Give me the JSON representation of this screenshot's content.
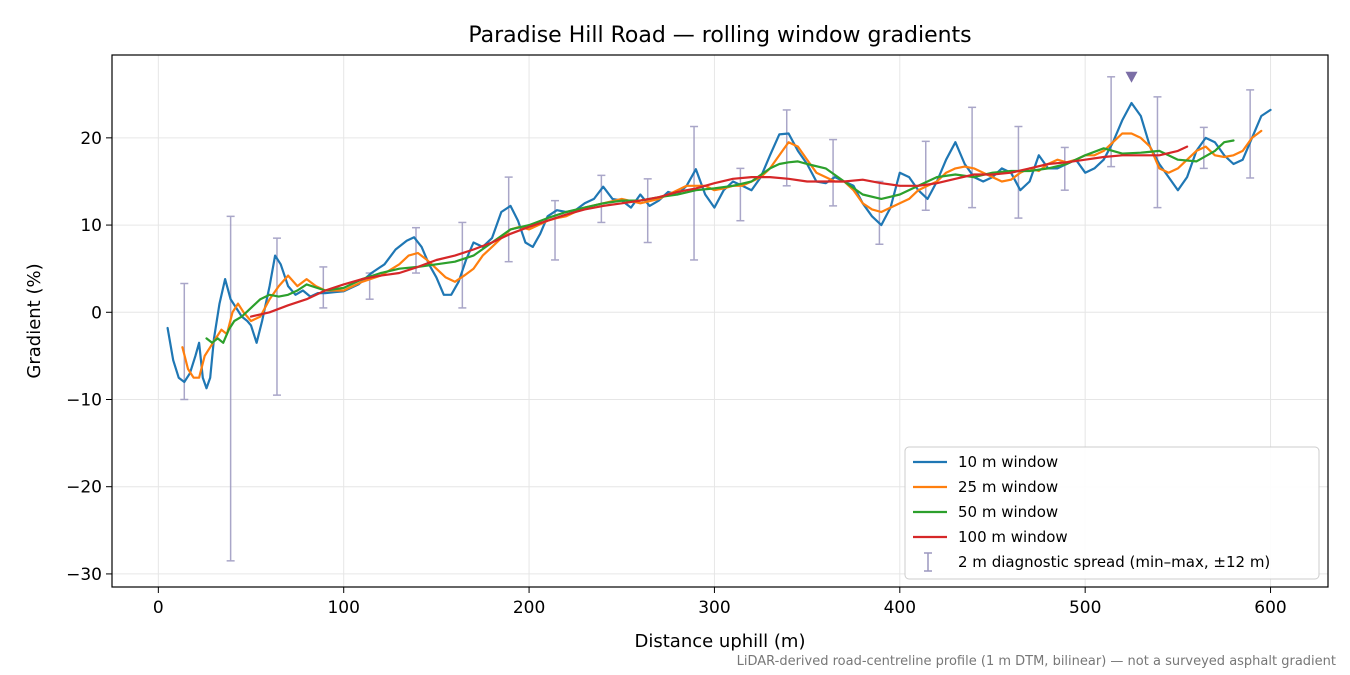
{
  "chart_data": {
    "type": "line",
    "title": "Paradise Hill Road — rolling window gradients",
    "xlabel": "Distance uphill (m)",
    "ylabel": "Gradient (%)",
    "xlim": [
      -25,
      631
    ],
    "ylim": [
      -31.5,
      29.5
    ],
    "x_ticks": [
      0,
      100,
      200,
      300,
      400,
      500,
      600
    ],
    "y_ticks": [
      -30,
      -20,
      -10,
      0,
      10,
      20
    ],
    "x_tick_labels": [
      "0",
      "100",
      "200",
      "300",
      "400",
      "500",
      "600"
    ],
    "y_tick_labels": [
      "−30",
      "−20",
      "−10",
      "0",
      "10",
      "20"
    ],
    "grid": true,
    "legend_position": "lower-right",
    "footnote": "LiDAR-derived road-centreline profile (1 m DTM, bilinear) — not a surveyed asphalt gradient",
    "series": [
      {
        "name": "10 m window",
        "color": "#1f77b4",
        "x": [
          5,
          8,
          11,
          14,
          17,
          20,
          22,
          24,
          26,
          28,
          30,
          33,
          36,
          39,
          42,
          45,
          48,
          50,
          53,
          56,
          60,
          63,
          66,
          70,
          74,
          78,
          82,
          86,
          90,
          95,
          100,
          108,
          115,
          122,
          128,
          134,
          138,
          142,
          146,
          150,
          154,
          158,
          162,
          166,
          170,
          175,
          180,
          185,
          190,
          194,
          198,
          202,
          206,
          210,
          215,
          220,
          225,
          230,
          235,
          240,
          245,
          250,
          255,
          260,
          265,
          270,
          275,
          280,
          285,
          290,
          295,
          300,
          305,
          310,
          315,
          320,
          325,
          330,
          335,
          340,
          345,
          350,
          355,
          360,
          365,
          370,
          375,
          380,
          385,
          390,
          395,
          400,
          405,
          410,
          415,
          420,
          425,
          430,
          435,
          440,
          445,
          450,
          455,
          460,
          465,
          470,
          475,
          480,
          485,
          490,
          495,
          500,
          505,
          510,
          515,
          520,
          525,
          530,
          535,
          540,
          545,
          550,
          555,
          560,
          565,
          570,
          575,
          580,
          585,
          590,
          595,
          600
        ],
        "y": [
          -1.8,
          -5.5,
          -7.5,
          -8.0,
          -7.0,
          -5.0,
          -3.5,
          -7.5,
          -8.7,
          -7.5,
          -3.0,
          1.0,
          3.8,
          1.5,
          0.5,
          -0.5,
          -1.0,
          -1.5,
          -3.5,
          -1.0,
          3.0,
          6.5,
          5.5,
          3.0,
          2.0,
          2.5,
          1.8,
          2.2,
          2.2,
          2.3,
          2.4,
          3.2,
          4.5,
          5.5,
          7.2,
          8.2,
          8.6,
          7.5,
          5.5,
          4.0,
          2.0,
          2.0,
          3.5,
          6.0,
          8.0,
          7.5,
          8.5,
          11.5,
          12.2,
          10.5,
          8.0,
          7.5,
          9.0,
          11.0,
          11.7,
          11.5,
          11.7,
          12.5,
          13.0,
          14.4,
          13.0,
          12.8,
          12.0,
          13.5,
          12.2,
          12.8,
          13.8,
          13.5,
          14.5,
          16.4,
          13.5,
          12.0,
          14.0,
          15.0,
          14.5,
          14.0,
          15.5,
          18.0,
          20.4,
          20.5,
          18.5,
          17.0,
          15.0,
          14.8,
          15.5,
          15.0,
          14.5,
          12.5,
          11.0,
          10.0,
          12.0,
          16.0,
          15.5,
          14.0,
          13.0,
          15.0,
          17.5,
          19.5,
          17.0,
          15.5,
          15.0,
          15.5,
          16.5,
          16.0,
          14.0,
          15.0,
          18.0,
          16.5,
          16.5,
          17.0,
          17.5,
          16.0,
          16.5,
          17.5,
          19.5,
          22.0,
          24.0,
          22.5,
          19.0,
          17.0,
          15.5,
          14.0,
          15.5,
          18.5,
          20.0,
          19.5,
          18.0,
          17.0,
          17.5,
          20.0,
          22.5,
          23.2
        ]
      },
      {
        "name": "25 m window",
        "color": "#ff7f0e",
        "x": [
          13,
          16,
          19,
          22,
          25,
          28,
          31,
          34,
          37,
          40,
          43,
          46,
          50,
          55,
          60,
          65,
          70,
          75,
          80,
          85,
          90,
          100,
          110,
          120,
          130,
          135,
          140,
          145,
          150,
          155,
          160,
          165,
          170,
          175,
          180,
          185,
          190,
          195,
          200,
          205,
          210,
          215,
          220,
          230,
          240,
          250,
          260,
          270,
          280,
          285,
          290,
          295,
          300,
          305,
          310,
          315,
          320,
          325,
          330,
          335,
          340,
          345,
          350,
          355,
          360,
          365,
          370,
          375,
          380,
          385,
          390,
          395,
          400,
          405,
          410,
          415,
          420,
          425,
          430,
          435,
          440,
          445,
          450,
          455,
          460,
          465,
          470,
          475,
          480,
          485,
          490,
          495,
          500,
          505,
          510,
          515,
          520,
          525,
          530,
          535,
          540,
          545,
          550,
          555,
          560,
          565,
          570,
          575,
          580,
          585,
          590,
          595
        ],
        "y": [
          -4.0,
          -6.5,
          -7.5,
          -7.5,
          -5.0,
          -4.0,
          -3.0,
          -2.0,
          -2.5,
          0.0,
          1.0,
          0.0,
          -1.0,
          -0.5,
          1.5,
          3.0,
          4.2,
          3.0,
          3.8,
          3.0,
          2.5,
          2.5,
          3.5,
          4.2,
          5.5,
          6.5,
          6.8,
          6.0,
          5.0,
          4.0,
          3.5,
          4.2,
          5.0,
          6.5,
          7.5,
          8.5,
          9.5,
          9.8,
          9.5,
          10.0,
          10.5,
          10.8,
          11.0,
          12.0,
          12.5,
          13.0,
          12.5,
          13.0,
          14.0,
          14.5,
          14.5,
          14.5,
          14.0,
          14.2,
          14.5,
          14.5,
          15.0,
          15.5,
          16.5,
          18.0,
          19.5,
          19.0,
          17.5,
          16.0,
          15.5,
          15.0,
          15.0,
          14.0,
          12.5,
          11.8,
          11.5,
          12.0,
          12.5,
          13.0,
          14.0,
          14.5,
          15.0,
          16.0,
          16.5,
          16.7,
          16.5,
          16.0,
          15.5,
          15.0,
          15.2,
          16.0,
          16.5,
          16.2,
          17.0,
          17.5,
          17.2,
          17.5,
          18.0,
          18.0,
          18.5,
          19.5,
          20.5,
          20.5,
          20.0,
          19.0,
          16.5,
          16.0,
          16.5,
          17.5,
          18.5,
          19.0,
          18.0,
          17.8,
          18.0,
          18.5,
          20.0,
          20.8
        ]
      },
      {
        "name": "50 m window",
        "color": "#2ca02c",
        "x": [
          26,
          29,
          32,
          35,
          38,
          41,
          45,
          50,
          55,
          60,
          65,
          70,
          75,
          80,
          90,
          100,
          110,
          120,
          130,
          140,
          150,
          160,
          170,
          180,
          190,
          200,
          210,
          220,
          230,
          240,
          250,
          260,
          270,
          280,
          290,
          300,
          310,
          320,
          330,
          335,
          340,
          345,
          350,
          360,
          370,
          380,
          390,
          400,
          410,
          420,
          430,
          440,
          450,
          460,
          470,
          480,
          490,
          500,
          510,
          520,
          530,
          540,
          550,
          560,
          570,
          575,
          580
        ],
        "y": [
          -3.0,
          -3.5,
          -3.0,
          -3.5,
          -2.0,
          -1.0,
          -0.5,
          0.5,
          1.5,
          2.0,
          1.8,
          2.0,
          2.5,
          3.2,
          2.5,
          2.8,
          3.8,
          4.5,
          5.0,
          5.2,
          5.5,
          5.8,
          6.5,
          8.0,
          9.5,
          10.0,
          10.8,
          11.5,
          12.0,
          12.5,
          12.8,
          12.8,
          13.2,
          13.5,
          14.0,
          14.2,
          14.5,
          15.0,
          16.5,
          17.0,
          17.2,
          17.3,
          17.0,
          16.5,
          15.0,
          13.5,
          13.0,
          13.5,
          14.5,
          15.5,
          15.8,
          15.5,
          16.0,
          16.2,
          16.2,
          16.5,
          17.0,
          18.0,
          18.8,
          18.2,
          18.3,
          18.5,
          17.5,
          17.3,
          18.5,
          19.5,
          19.7
        ]
      },
      {
        "name": "100 m window",
        "color": "#d62728",
        "x": [
          50,
          60,
          70,
          80,
          90,
          100,
          110,
          120,
          130,
          140,
          150,
          160,
          170,
          180,
          190,
          200,
          210,
          220,
          230,
          240,
          250,
          260,
          270,
          280,
          290,
          300,
          310,
          320,
          330,
          340,
          350,
          360,
          370,
          380,
          390,
          400,
          410,
          420,
          430,
          440,
          450,
          460,
          470,
          480,
          490,
          500,
          510,
          520,
          530,
          540,
          550,
          555
        ],
        "y": [
          -0.5,
          0.0,
          0.8,
          1.5,
          2.5,
          3.2,
          3.8,
          4.2,
          4.5,
          5.2,
          6.0,
          6.5,
          7.2,
          8.0,
          9.0,
          9.8,
          10.5,
          11.2,
          11.8,
          12.2,
          12.5,
          12.8,
          13.2,
          13.8,
          14.2,
          14.8,
          15.3,
          15.5,
          15.5,
          15.3,
          15.0,
          15.0,
          15.0,
          15.2,
          14.8,
          14.5,
          14.5,
          14.8,
          15.3,
          15.8,
          15.8,
          16.0,
          16.5,
          17.0,
          17.2,
          17.5,
          17.8,
          18.0,
          18.0,
          18.0,
          18.5,
          19.0
        ]
      }
    ],
    "error_series": {
      "name": "2 m diagnostic spread (min–max, ±12 m)",
      "color": "#9b97bf",
      "x": [
        14,
        39,
        64,
        89,
        114,
        139,
        164,
        189,
        214,
        239,
        264,
        289,
        314,
        339,
        364,
        389,
        414,
        439,
        464,
        489,
        514,
        539,
        564,
        589
      ],
      "low": [
        -10.0,
        -28.5,
        -9.5,
        0.5,
        1.5,
        4.5,
        0.5,
        5.8,
        6.0,
        10.3,
        8.0,
        6.0,
        10.5,
        14.5,
        12.2,
        7.8,
        11.7,
        12.0,
        10.8,
        14.0,
        16.7,
        12.0,
        16.5,
        15.4
      ],
      "high": [
        3.3,
        11.0,
        8.5,
        5.2,
        4.5,
        9.7,
        10.3,
        15.5,
        12.8,
        15.7,
        15.3,
        21.3,
        16.5,
        23.2,
        19.8,
        15.0,
        19.6,
        23.5,
        21.3,
        18.9,
        27.0,
        24.7,
        21.2,
        25.5
      ]
    },
    "max_marker": {
      "x": 525,
      "y": 27.0,
      "color": "#7b6ea6"
    }
  }
}
